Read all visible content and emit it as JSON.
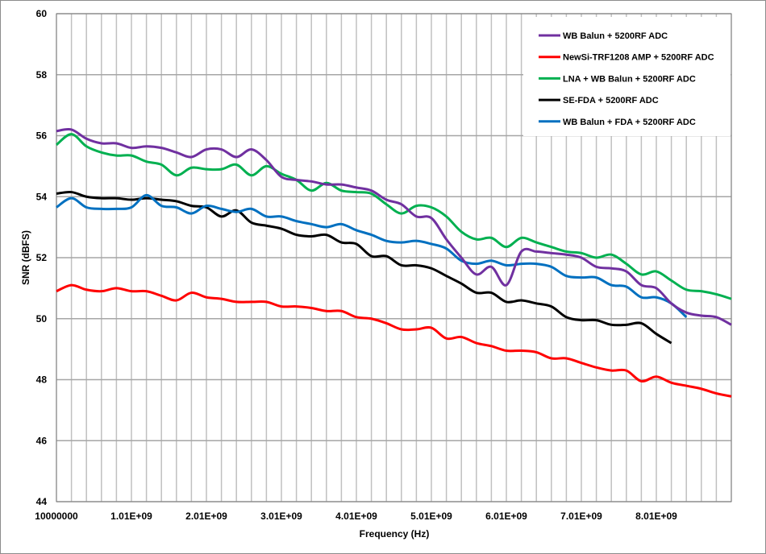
{
  "chart_data": {
    "type": "line",
    "xlabel": "Frequency (Hz)",
    "ylabel": "SNR (dBFS)",
    "xlim": [
      10000000,
      9010000000
    ],
    "ylim": [
      44,
      60
    ],
    "yticks": [
      44,
      46,
      48,
      50,
      52,
      54,
      56,
      58,
      60
    ],
    "xticks": [
      10000000,
      1010000000,
      2010000000,
      3010000000,
      4010000000,
      5010000000,
      6010000000,
      7010000000,
      8010000000
    ],
    "xtick_labels": [
      "10000000",
      "1.01E+09",
      "2.01E+09",
      "3.01E+09",
      "4.01E+09",
      "5.01E+09",
      "6.01E+09",
      "7.01E+09",
      "8.01E+09"
    ],
    "x_step": 200000000,
    "grid": true,
    "legend_position": "top-right",
    "series": [
      {
        "name": "WB Balun + 5200RF ADC",
        "color": "#7030a0",
        "values": [
          56.15,
          56.2,
          55.9,
          55.75,
          55.75,
          55.6,
          55.65,
          55.6,
          55.45,
          55.3,
          55.55,
          55.55,
          55.3,
          55.55,
          55.2,
          54.65,
          54.55,
          54.5,
          54.4,
          54.4,
          54.3,
          54.2,
          53.9,
          53.75,
          53.35,
          53.3,
          52.6,
          52.0,
          51.45,
          51.7,
          51.1,
          52.2,
          52.2,
          52.15,
          52.1,
          52.0,
          51.7,
          51.65,
          51.55,
          51.1,
          51.0,
          50.5,
          50.2,
          50.1,
          50.05,
          49.8
        ]
      },
      {
        "name": "NewSi-TRF1208 AMP + 5200RF ADC",
        "color": "#ff0000",
        "values": [
          50.9,
          51.1,
          50.95,
          50.9,
          51.0,
          50.9,
          50.9,
          50.75,
          50.6,
          50.85,
          50.7,
          50.65,
          50.55,
          50.55,
          50.55,
          50.4,
          50.4,
          50.35,
          50.25,
          50.25,
          50.05,
          50.0,
          49.85,
          49.65,
          49.65,
          49.7,
          49.35,
          49.4,
          49.2,
          49.1,
          48.95,
          48.95,
          48.9,
          48.7,
          48.7,
          48.55,
          48.4,
          48.3,
          48.3,
          47.95,
          48.1,
          47.9,
          47.8,
          47.7,
          47.55,
          47.45
        ]
      },
      {
        "name": "LNA + WB Balun + 5200RF ADC",
        "color": "#00b050",
        "values": [
          55.7,
          56.05,
          55.65,
          55.45,
          55.35,
          55.35,
          55.15,
          55.05,
          54.7,
          54.95,
          54.9,
          54.9,
          55.05,
          54.7,
          55.0,
          54.75,
          54.55,
          54.2,
          54.45,
          54.2,
          54.15,
          54.1,
          53.75,
          53.45,
          53.7,
          53.65,
          53.35,
          52.85,
          52.6,
          52.65,
          52.35,
          52.65,
          52.5,
          52.35,
          52.2,
          52.15,
          52.0,
          52.1,
          51.8,
          51.45,
          51.55,
          51.25,
          50.95,
          50.9,
          50.8,
          50.65
        ]
      },
      {
        "name": "SE-FDA + 5200RF ADC",
        "color": "#000000",
        "values": [
          54.1,
          54.15,
          54.0,
          53.95,
          53.95,
          53.9,
          53.95,
          53.9,
          53.85,
          53.7,
          53.65,
          53.35,
          53.55,
          53.15,
          53.05,
          52.95,
          52.75,
          52.7,
          52.75,
          52.5,
          52.45,
          52.05,
          52.05,
          51.75,
          51.75,
          51.65,
          51.4,
          51.15,
          50.85,
          50.85,
          50.55,
          50.6,
          50.5,
          50.4,
          50.05,
          49.95,
          49.95,
          49.8,
          49.8,
          49.85,
          49.5,
          49.2
        ]
      },
      {
        "name": "WB Balun + FDA + 5200RF ADC",
        "color": "#0070c0",
        "values": [
          53.65,
          53.95,
          53.65,
          53.6,
          53.6,
          53.65,
          54.05,
          53.7,
          53.65,
          53.45,
          53.7,
          53.6,
          53.5,
          53.6,
          53.35,
          53.35,
          53.2,
          53.1,
          53.0,
          53.1,
          52.9,
          52.75,
          52.55,
          52.5,
          52.55,
          52.45,
          52.3,
          51.9,
          51.8,
          51.9,
          51.75,
          51.8,
          51.8,
          51.7,
          51.4,
          51.35,
          51.35,
          51.1,
          51.05,
          50.7,
          50.7,
          50.5,
          50.05
        ]
      }
    ]
  }
}
